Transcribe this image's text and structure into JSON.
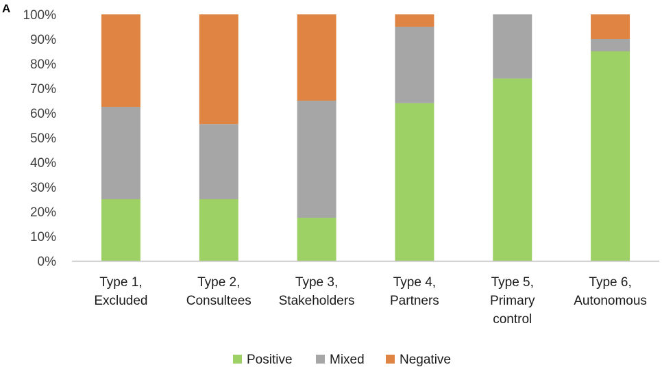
{
  "panel_label": "A",
  "colors": {
    "positive": "#9dd065",
    "mixed": "#a6a6a6",
    "negative": "#e08444",
    "axis": "#bfbfbf",
    "text": "#404040"
  },
  "chart_data": {
    "type": "bar",
    "stacked": true,
    "title": "",
    "xlabel": "",
    "ylabel": "",
    "ylim": [
      0,
      100
    ],
    "yticks": [
      "0%",
      "10%",
      "20%",
      "30%",
      "40%",
      "50%",
      "60%",
      "70%",
      "80%",
      "90%",
      "100%"
    ],
    "categories": [
      [
        "Type 1,",
        "Excluded"
      ],
      [
        "Type 2,",
        "Consultees"
      ],
      [
        "Type 3,",
        "Stakeholders"
      ],
      [
        "Type 4,",
        "Partners"
      ],
      [
        "Type 5,",
        "Primary",
        "control"
      ],
      [
        "Type 6,",
        "Autonomous"
      ]
    ],
    "series": [
      {
        "name": "Positive",
        "color_key": "positive",
        "values": [
          25,
          25,
          17.5,
          64,
          74,
          85
        ]
      },
      {
        "name": "Mixed",
        "color_key": "mixed",
        "values": [
          37.5,
          30.5,
          47.5,
          31,
          26,
          5
        ]
      },
      {
        "name": "Negative",
        "color_key": "negative",
        "values": [
          37.5,
          44.5,
          35,
          5,
          0,
          10
        ]
      }
    ],
    "legend_position": "bottom-center",
    "grid": false
  }
}
